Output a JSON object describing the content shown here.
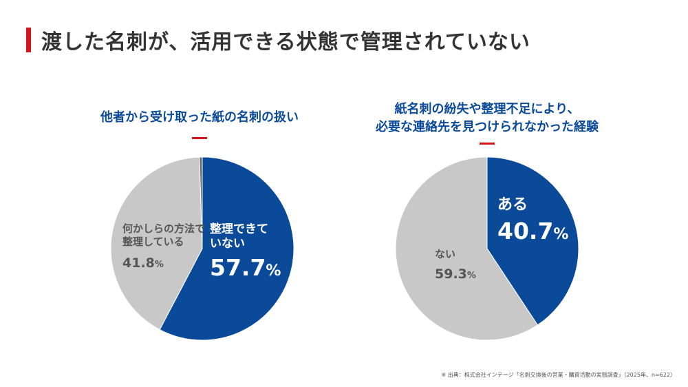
{
  "page": {
    "title": "渡した名刺が、活用できる状態で管理されていない",
    "source": "※ 出典：株式会社インテージ「名刺交換後の営業・購買活動の実態調査」（2025年、n=622）"
  },
  "colors": {
    "blue": "#0a4a99",
    "gray": "#c8c8c8",
    "dark_gray": "#6b6b6b",
    "accent_red": "#d7141c"
  },
  "chart_data": [
    {
      "type": "pie",
      "title": "他者から受け取った紙の名刺の扱い",
      "slices": [
        {
          "label": "整理できていない",
          "label_lines": [
            "整理できて",
            "いない"
          ],
          "value": 57.7,
          "value_text": "57.7",
          "unit": "%",
          "color": "#0a4a99"
        },
        {
          "label": "何かしらの方法で整理している",
          "label_lines": [
            "何かしらの方法で",
            "整理している"
          ],
          "value": 41.8,
          "value_text": "41.8",
          "unit": "%",
          "color": "#c8c8c8"
        },
        {
          "label": "",
          "value": 0.5,
          "color": "#6b6b6b"
        }
      ]
    },
    {
      "type": "pie",
      "title_lines": [
        "紙名刺の紛失や整理不足により、",
        "必要な連絡先を見つけられなかった経験"
      ],
      "slices": [
        {
          "label": "ある",
          "label_lines": [
            "ある"
          ],
          "value": 40.7,
          "value_text": "40.7",
          "unit": "%",
          "color": "#0a4a99"
        },
        {
          "label": "ない",
          "label_lines": [
            "ない"
          ],
          "value": 59.3,
          "value_text": "59.3",
          "unit": "%",
          "color": "#c8c8c8"
        }
      ]
    }
  ]
}
